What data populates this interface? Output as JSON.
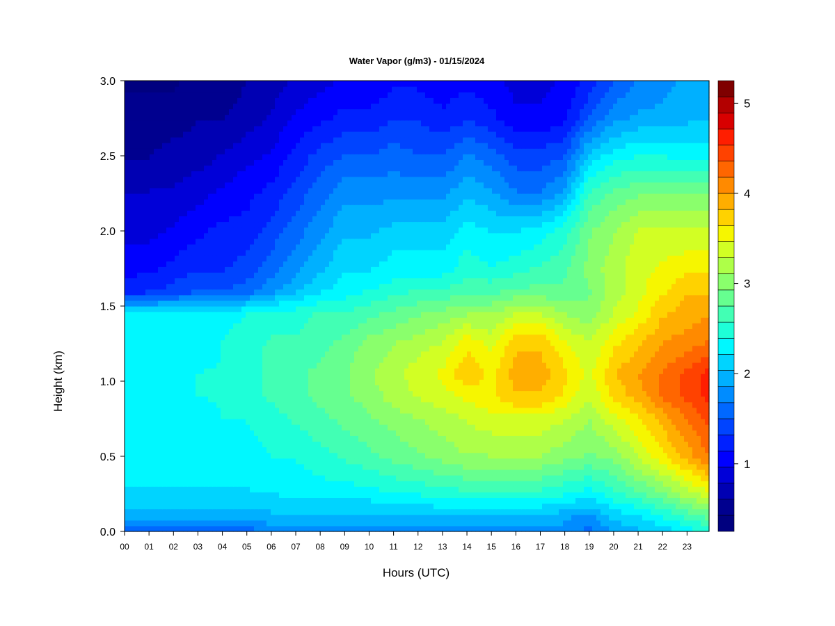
{
  "chart_data": {
    "type": "heatmap",
    "title": "Water Vapor (g/m3) - 01/15/2024",
    "xlabel": "Hours (UTC)",
    "ylabel": "Height (km)",
    "xlim": [
      0,
      23.9
    ],
    "ylim": [
      0.0,
      3.0
    ],
    "x_ticks": [
      0,
      1,
      2,
      3,
      4,
      5,
      6,
      7,
      8,
      9,
      10,
      11,
      12,
      13,
      14,
      15,
      16,
      17,
      18,
      19,
      20,
      21,
      22,
      23
    ],
    "x_tick_labels": [
      "00",
      "01",
      "02",
      "03",
      "04",
      "05",
      "06",
      "07",
      "08",
      "09",
      "10",
      "11",
      "12",
      "13",
      "14",
      "15",
      "16",
      "17",
      "18",
      "19",
      "20",
      "21",
      "22",
      "23"
    ],
    "y_ticks": [
      0.0,
      0.5,
      1.0,
      1.5,
      2.0,
      2.5,
      3.0
    ],
    "y_tick_labels": [
      "0.0",
      "0.5",
      "1.0",
      "1.5",
      "2.0",
      "2.5",
      "3.0"
    ],
    "colorbar": {
      "min": 0.25,
      "max": 5.25,
      "levels": 25,
      "ticks": [
        1,
        2,
        3,
        4,
        5
      ],
      "tick_labels": [
        "1",
        "2",
        "3",
        "4",
        "5"
      ],
      "colors": [
        "#00007f",
        "#00008f",
        "#0000b3",
        "#0000d8",
        "#0000ff",
        "#0020ff",
        "#0044ff",
        "#0068ff",
        "#008cff",
        "#00b0ff",
        "#00d4ff",
        "#00f8ff",
        "#1effd8",
        "#42ffb4",
        "#66ff90",
        "#8aff6c",
        "#aeff48",
        "#d2ff24",
        "#f6f600",
        "#ffd200",
        "#ffae00",
        "#ff8a00",
        "#ff6600",
        "#ff4200",
        "#ff1e00",
        "#d80000",
        "#b30000",
        "#7f0000"
      ]
    },
    "heights_km": [
      0.0,
      0.1,
      0.25,
      0.5,
      0.75,
      0.9,
      1.05,
      1.25,
      1.45,
      1.6,
      1.75,
      2.0,
      2.25,
      2.5,
      2.75,
      3.0
    ],
    "hours": [
      0,
      1,
      2,
      3,
      4,
      5,
      6,
      7,
      8,
      9,
      10,
      11,
      12,
      13,
      14,
      15,
      16,
      17,
      18,
      19,
      20,
      21,
      22,
      23,
      23.9
    ],
    "values_g_m3": [
      [
        1.6,
        1.6,
        1.6,
        1.6,
        1.6,
        1.6,
        1.7,
        1.7,
        1.7,
        1.7,
        1.7,
        1.7,
        1.8,
        1.8,
        1.8,
        1.8,
        1.8,
        1.8,
        1.8,
        1.6,
        1.9,
        2.0,
        2.1,
        2.3,
        2.4
      ],
      [
        1.9,
        1.9,
        1.9,
        1.9,
        1.9,
        1.9,
        2.0,
        2.0,
        2.0,
        2.0,
        2.0,
        2.0,
        2.0,
        2.0,
        2.0,
        2.0,
        2.0,
        2.0,
        1.9,
        1.8,
        2.1,
        2.2,
        2.4,
        2.6,
        2.8
      ],
      [
        2.2,
        2.2,
        2.2,
        2.2,
        2.2,
        2.2,
        2.2,
        2.3,
        2.3,
        2.3,
        2.3,
        2.4,
        2.4,
        2.5,
        2.5,
        2.5,
        2.5,
        2.5,
        2.4,
        2.3,
        2.5,
        2.7,
        2.9,
        3.2,
        3.4
      ],
      [
        2.3,
        2.3,
        2.3,
        2.3,
        2.3,
        2.3,
        2.4,
        2.4,
        2.5,
        2.6,
        2.7,
        2.8,
        2.9,
        3.0,
        3.1,
        3.1,
        3.1,
        3.1,
        3.0,
        2.9,
        3.0,
        3.3,
        3.6,
        3.9,
        4.2
      ],
      [
        2.3,
        2.3,
        2.3,
        2.3,
        2.4,
        2.4,
        2.5,
        2.6,
        2.7,
        2.8,
        2.9,
        3.0,
        3.1,
        3.2,
        3.3,
        3.4,
        3.4,
        3.4,
        3.3,
        3.1,
        3.4,
        3.6,
        3.9,
        4.2,
        4.4
      ],
      [
        2.3,
        2.3,
        2.3,
        2.4,
        2.4,
        2.5,
        2.6,
        2.7,
        2.8,
        2.9,
        3.0,
        3.2,
        3.3,
        3.4,
        3.5,
        3.6,
        3.8,
        3.8,
        3.6,
        3.3,
        3.7,
        3.9,
        4.2,
        4.4,
        4.6
      ],
      [
        2.3,
        2.3,
        2.3,
        2.4,
        2.4,
        2.5,
        2.6,
        2.7,
        2.8,
        2.9,
        3.1,
        3.2,
        3.4,
        3.5,
        3.8,
        3.6,
        3.9,
        3.9,
        3.7,
        3.4,
        3.8,
        4.0,
        4.2,
        4.4,
        4.6
      ],
      [
        2.3,
        2.3,
        2.3,
        2.3,
        2.4,
        2.5,
        2.6,
        2.6,
        2.7,
        2.8,
        3.0,
        3.1,
        3.2,
        3.3,
        3.6,
        3.4,
        3.8,
        3.8,
        3.5,
        3.3,
        3.6,
        3.8,
        4.0,
        4.1,
        4.2
      ],
      [
        2.3,
        2.3,
        2.3,
        2.3,
        2.3,
        2.4,
        2.5,
        2.5,
        2.6,
        2.6,
        2.7,
        2.8,
        2.9,
        3.0,
        3.1,
        3.1,
        3.3,
        3.3,
        3.1,
        3.0,
        3.3,
        3.5,
        3.8,
        3.9,
        4.0
      ],
      [
        1.2,
        1.3,
        1.4,
        1.5,
        1.5,
        1.6,
        1.8,
        2.0,
        2.2,
        2.3,
        2.4,
        2.5,
        2.6,
        2.6,
        2.7,
        2.7,
        2.8,
        2.8,
        2.8,
        2.9,
        3.2,
        3.4,
        3.6,
        3.8,
        3.8
      ],
      [
        1.1,
        1.1,
        1.2,
        1.3,
        1.3,
        1.4,
        1.6,
        1.8,
        2.0,
        2.2,
        2.2,
        2.3,
        2.3,
        2.3,
        2.5,
        2.4,
        2.5,
        2.6,
        2.7,
        3.0,
        3.2,
        3.4,
        3.5,
        3.6,
        3.6
      ],
      [
        0.9,
        0.9,
        1.0,
        1.1,
        1.2,
        1.2,
        1.4,
        1.6,
        1.8,
        2.0,
        2.0,
        2.1,
        2.1,
        2.1,
        2.3,
        2.2,
        2.2,
        2.3,
        2.5,
        2.9,
        3.1,
        3.3,
        3.3,
        3.3,
        3.3
      ],
      [
        0.8,
        0.8,
        0.8,
        0.9,
        1.0,
        1.1,
        1.2,
        1.4,
        1.6,
        1.8,
        1.8,
        1.8,
        1.8,
        1.8,
        2.0,
        1.9,
        1.7,
        1.7,
        1.9,
        2.6,
        2.8,
        2.9,
        2.9,
        2.9,
        2.9
      ],
      [
        0.6,
        0.6,
        0.7,
        0.7,
        0.8,
        0.9,
        1.0,
        1.2,
        1.4,
        1.5,
        1.5,
        1.6,
        1.5,
        1.5,
        1.7,
        1.6,
        1.4,
        1.4,
        1.5,
        2.1,
        2.3,
        2.4,
        2.4,
        2.3,
        2.3
      ],
      [
        0.5,
        0.5,
        0.5,
        0.6,
        0.6,
        0.7,
        0.8,
        1.0,
        1.1,
        1.2,
        1.2,
        1.3,
        1.3,
        1.2,
        1.3,
        1.2,
        1.0,
        1.0,
        1.1,
        1.5,
        1.8,
        1.9,
        1.9,
        2.0,
        2.0
      ],
      [
        0.4,
        0.4,
        0.4,
        0.5,
        0.5,
        0.6,
        0.7,
        0.8,
        0.9,
        1.0,
        1.0,
        1.1,
        1.1,
        1.0,
        1.1,
        1.0,
        0.9,
        0.9,
        1.0,
        1.2,
        1.5,
        1.7,
        1.8,
        1.9,
        2.0
      ]
    ],
    "grid": false,
    "legend": "right"
  }
}
